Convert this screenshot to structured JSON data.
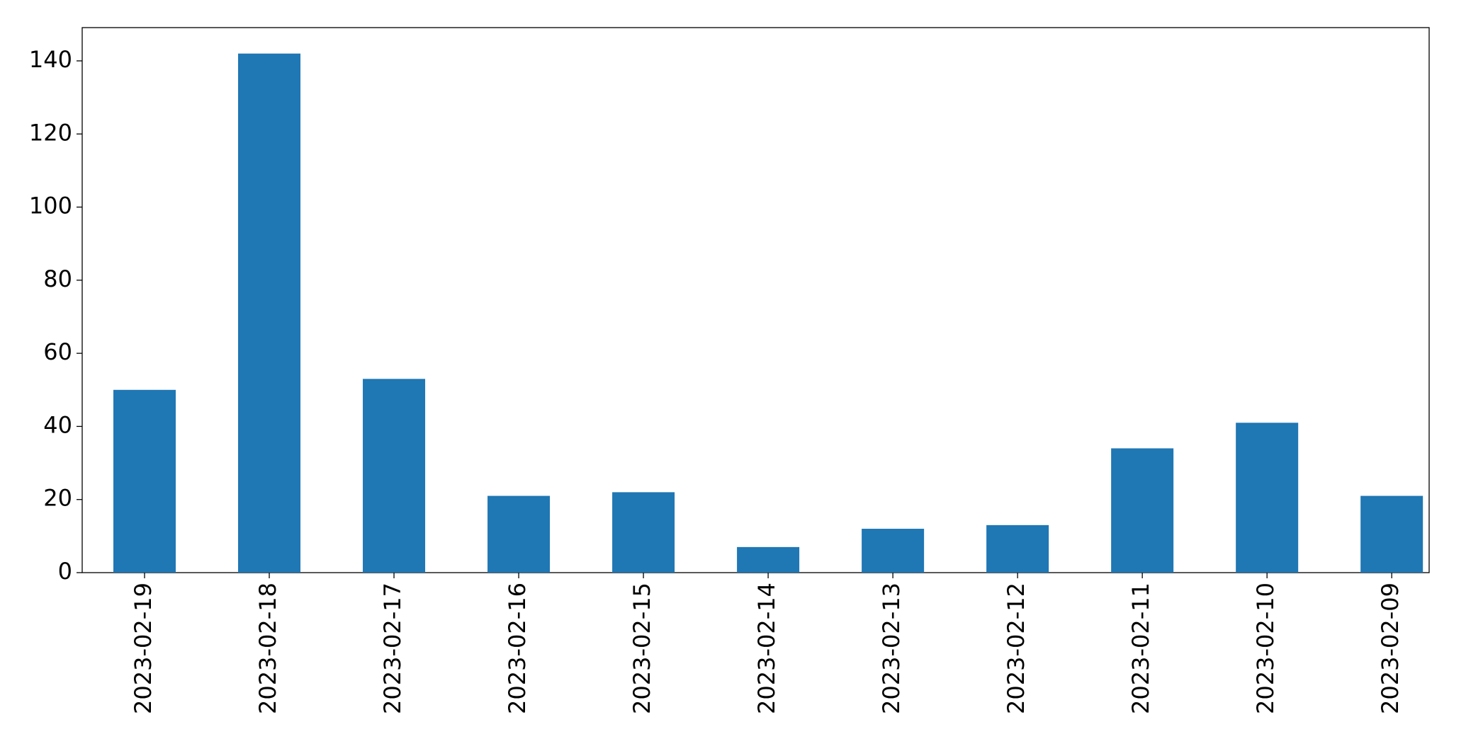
{
  "chart_data": {
    "type": "bar",
    "categories": [
      "2023-02-19",
      "2023-02-18",
      "2023-02-17",
      "2023-02-16",
      "2023-02-15",
      "2023-02-14",
      "2023-02-13",
      "2023-02-12",
      "2023-02-11",
      "2023-02-10",
      "2023-02-09"
    ],
    "values": [
      50,
      142,
      53,
      21,
      22,
      7,
      12,
      13,
      34,
      41,
      21
    ],
    "color": "#1f77b4",
    "ylim": [
      0,
      149.1
    ],
    "yticks": [
      0,
      20,
      40,
      60,
      80,
      100,
      120,
      140
    ],
    "grid": false
  }
}
